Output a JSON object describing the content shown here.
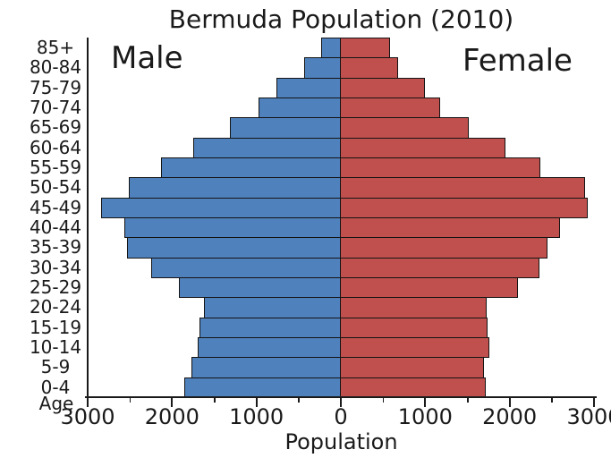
{
  "chart_data": {
    "type": "bar",
    "subtype": "population-pyramid",
    "title": "Bermuda Population (2010)",
    "xlabel": "Population",
    "age_axis_label": "Age",
    "annotations": {
      "male": "Male",
      "female": "Female"
    },
    "categories_top_to_bottom": [
      "85+",
      "80-84",
      "75-79",
      "70-74",
      "65-69",
      "60-64",
      "55-59",
      "50-54",
      "45-49",
      "40-44",
      "35-39",
      "30-34",
      "25-29",
      "20-24",
      "15-19",
      "10-14",
      "5-9",
      "0-4"
    ],
    "series": [
      {
        "name": "Male",
        "side": "left",
        "color": "#4f81bd",
        "values": [
          235,
          435,
          765,
          975,
          1315,
          1750,
          2135,
          2510,
          2840,
          2570,
          2530,
          2250,
          1920,
          1625,
          1680,
          1700,
          1775,
          1850
        ]
      },
      {
        "name": "Female",
        "side": "right",
        "color": "#c0504d",
        "values": [
          585,
          680,
          1000,
          1180,
          1520,
          1950,
          2360,
          2890,
          2925,
          2595,
          2450,
          2355,
          2100,
          1730,
          1735,
          1765,
          1700,
          1715
        ]
      }
    ],
    "xlim": [
      -3000,
      3000
    ],
    "xtick_values": [
      -3000,
      -2000,
      -1000,
      0,
      1000,
      2000,
      3000
    ],
    "xtick_labels": [
      "3000",
      "2000",
      "1000",
      "0",
      "1000",
      "2000",
      "3000"
    ],
    "minor_tick_values": [
      -2500,
      -1500,
      -500,
      500,
      1500,
      2500
    ],
    "grid": false,
    "bar_edge_color": "#141414",
    "background_color": "#ffffff"
  }
}
